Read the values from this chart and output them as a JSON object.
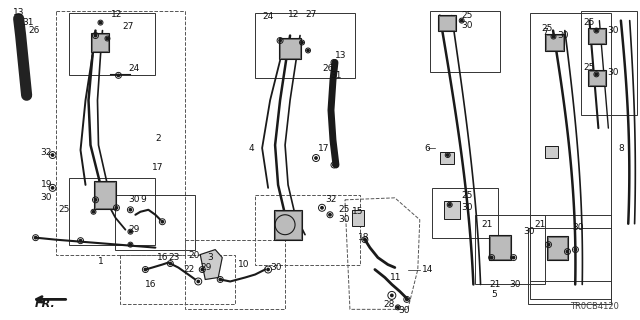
{
  "bg_color": "#ffffff",
  "line_color": "#1a1a1a",
  "diagram_id": "TR0CB4120",
  "fig_width": 6.4,
  "fig_height": 3.2,
  "dpi": 100
}
